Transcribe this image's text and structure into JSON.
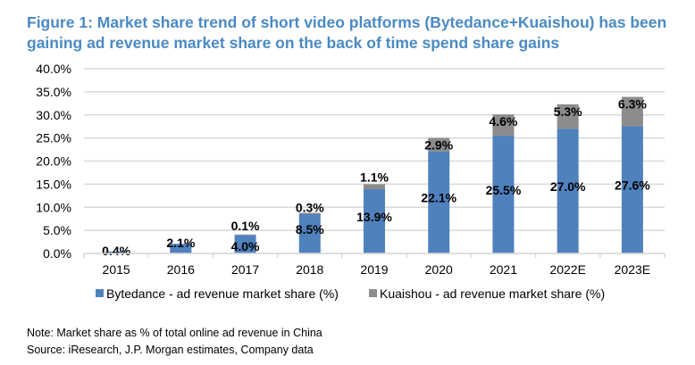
{
  "chart_data": {
    "type": "bar",
    "stacked": true,
    "title": "Figure 1: Market share trend of short video platforms (Bytedance+Kuaishou) has been gaining ad revenue market share on the back of time spend share gains",
    "categories": [
      "2015",
      "2016",
      "2017",
      "2018",
      "2019",
      "2020",
      "2021",
      "2022E",
      "2023E"
    ],
    "series": [
      {
        "name": "Bytedance - ad revenue market share (%)",
        "color": "#4f81bd",
        "values": [
          0.4,
          2.1,
          4.0,
          8.5,
          13.9,
          22.1,
          25.5,
          27.0,
          27.6
        ],
        "labels": [
          "0.4%",
          "2.1%",
          "4.0%",
          "8.5%",
          "13.9%",
          "22.1%",
          "25.5%",
          "27.0%",
          "27.6%"
        ]
      },
      {
        "name": "Kuaishou - ad revenue market share (%)",
        "color": "#8c8c8c",
        "values": [
          0,
          0,
          0.1,
          0.3,
          1.1,
          2.9,
          4.6,
          5.3,
          6.3
        ],
        "labels": [
          "",
          "",
          "0.1%",
          "0.3%",
          "1.1%",
          "2.9%",
          "4.6%",
          "5.3%",
          "6.3%"
        ]
      }
    ],
    "ylim": [
      0,
      40
    ],
    "yticks": [
      "0.0%",
      "5.0%",
      "10.0%",
      "15.0%",
      "20.0%",
      "25.0%",
      "30.0%",
      "35.0%",
      "40.0%"
    ],
    "grid": true,
    "legend": "bottom"
  },
  "notes": {
    "note": "Note: Market share as % of total online ad revenue in China",
    "source": "Source: iResearch, J.P. Morgan estimates, Company data"
  }
}
